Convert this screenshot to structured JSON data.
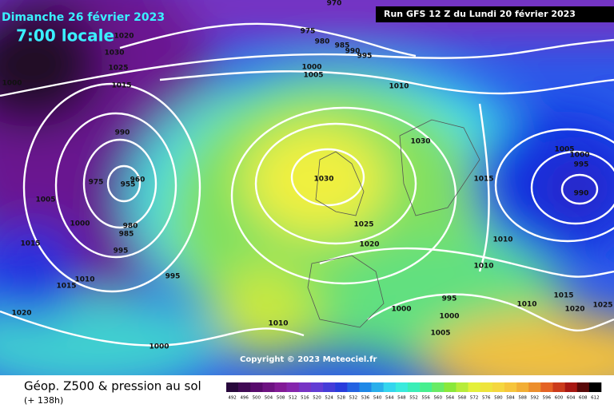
{
  "header": {
    "date": "Dimanche 26 février 2023",
    "time": "7:00 locale",
    "run": "Run GFS 12 Z du Lundi 20 février 2023"
  },
  "copyright": "Copyright © 2023 Meteociel.fr",
  "legend": {
    "title": "Géop. Z500 & pression au sol",
    "lead": "(+ 138h)",
    "levels": [
      492,
      496,
      500,
      504,
      508,
      512,
      516,
      520,
      524,
      528,
      532,
      536,
      540,
      544,
      548,
      552,
      556,
      560,
      564,
      568,
      572,
      576,
      580,
      584,
      588,
      592,
      596,
      600,
      604,
      608,
      612
    ]
  },
  "isobar_labels": [
    970,
    1020,
    1030,
    1025,
    1015,
    1000,
    975,
    980,
    985,
    990,
    995,
    1000,
    1005,
    1010,
    990,
    975,
    955,
    960,
    1005,
    1000,
    980,
    985,
    995,
    1015,
    1010,
    1015,
    995,
    1020,
    1000,
    1010,
    1030,
    1030,
    1025,
    1020,
    1015,
    1005,
    1000,
    995,
    990,
    1010,
    1010,
    995,
    1000,
    1000,
    1005,
    1015,
    1010,
    1020,
    1025
  ]
}
